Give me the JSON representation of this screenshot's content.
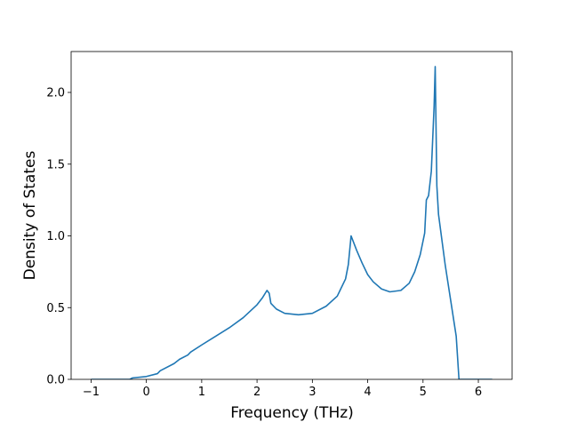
{
  "chart_data": {
    "type": "line",
    "x_label": "Frequency (THz)",
    "y_label": "Density of States",
    "x": [
      -1,
      -0.3,
      -0.25,
      0,
      0.2,
      0.25,
      0.5,
      0.6,
      0.75,
      0.8,
      1.0,
      1.25,
      1.5,
      1.75,
      2.0,
      2.1,
      2.18,
      2.22,
      2.25,
      2.35,
      2.5,
      2.75,
      3.0,
      3.25,
      3.45,
      3.6,
      3.65,
      3.7,
      3.8,
      3.9,
      4.0,
      4.1,
      4.25,
      4.4,
      4.6,
      4.75,
      4.85,
      4.95,
      5.03,
      5.06,
      5.1,
      5.15,
      5.2,
      5.22,
      5.25,
      5.28,
      5.4,
      5.5,
      5.6,
      5.65,
      6.25
    ],
    "series": [
      {
        "color": "#1f77b4",
        "values": [
          0,
          0,
          0.01,
          0.02,
          0.04,
          0.06,
          0.11,
          0.14,
          0.17,
          0.19,
          0.24,
          0.3,
          0.36,
          0.43,
          0.52,
          0.57,
          0.62,
          0.6,
          0.53,
          0.49,
          0.46,
          0.45,
          0.46,
          0.51,
          0.58,
          0.7,
          0.8,
          1.0,
          0.9,
          0.81,
          0.73,
          0.68,
          0.63,
          0.61,
          0.62,
          0.67,
          0.75,
          0.87,
          1.02,
          1.25,
          1.28,
          1.45,
          1.9,
          2.18,
          1.35,
          1.15,
          0.8,
          0.55,
          0.3,
          0.0,
          0
        ]
      }
    ],
    "xlim": [
      -1.36,
      6.61
    ],
    "ylim": [
      0,
      2.285
    ],
    "xticks": [
      {
        "value": -1,
        "label": "−1"
      },
      0,
      1,
      2,
      3,
      4,
      5,
      6
    ],
    "yticks": [
      {
        "value": 0,
        "label": "0.0"
      },
      {
        "value": 0.5,
        "label": "0.5"
      },
      {
        "value": 1,
        "label": "1.0"
      },
      {
        "value": 1.5,
        "label": "1.5"
      },
      {
        "value": 2,
        "label": "2.0"
      }
    ]
  }
}
